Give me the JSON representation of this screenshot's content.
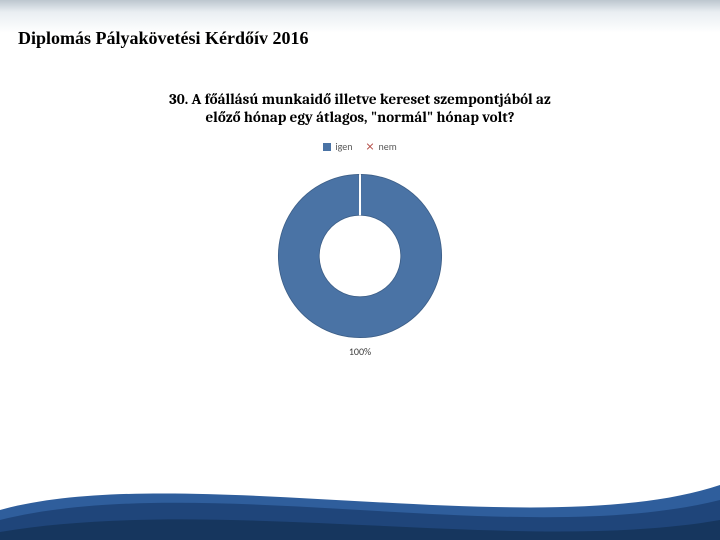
{
  "header": {
    "title": "Diplomás Pályakövetési Kérdőív 2016"
  },
  "chart": {
    "type": "donut",
    "title": "30. A főállású munkaidő illetve kereset szempontjából az előző hónap egy átlagos, \"normál\" hónap volt?",
    "title_fontsize": 15,
    "legend": [
      {
        "label": "igen",
        "color": "#4a73a5"
      },
      {
        "label": "nem",
        "color": "#b24a44"
      }
    ],
    "series": [
      {
        "name": "igen",
        "value": 100,
        "color": "#4a73a5"
      },
      {
        "name": "nem",
        "value": 0,
        "color": "#b24a44"
      }
    ],
    "center_label": "100%",
    "donut_inner_ratio": 0.5,
    "background_color": "#ffffff",
    "gap_angle_deg": 1.5,
    "outline_color": "#3d5f88"
  },
  "deco": {
    "curve_top_color": "#1f457a",
    "curve_mid_color": "#2f5e9c",
    "curve_bottom_color": "#16365e"
  }
}
